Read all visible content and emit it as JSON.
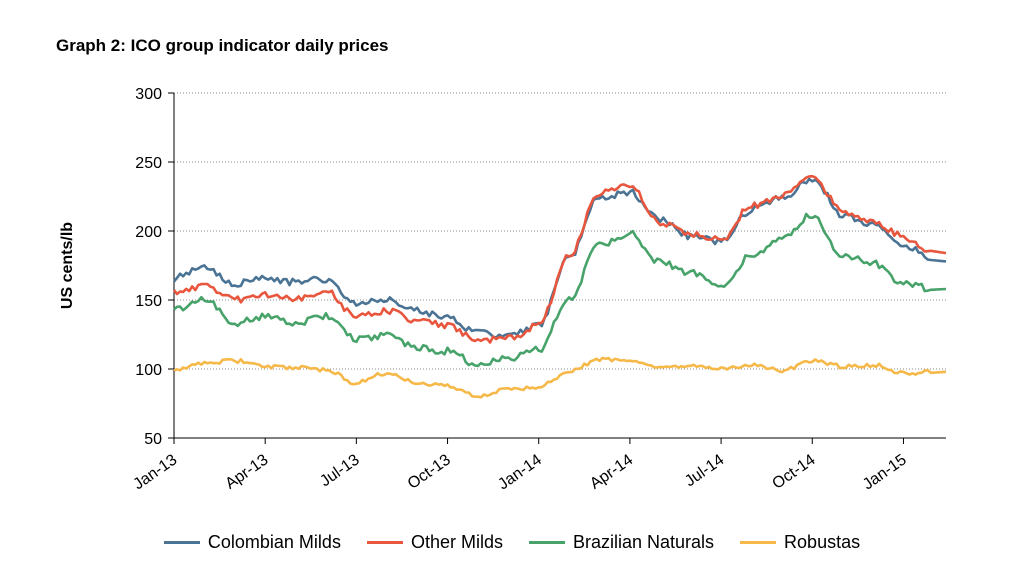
{
  "chart_data": {
    "type": "line",
    "title": "Graph 2: ICO group indicator daily prices",
    "xlabel": "",
    "ylabel": "US cents/lb",
    "ylim": [
      50,
      300
    ],
    "yticks": [
      50,
      100,
      150,
      200,
      250,
      300
    ],
    "xticks": [
      "Jan-13",
      "Apr-13",
      "Jul-13",
      "Oct-13",
      "Jan-14",
      "Apr-14",
      "Jul-14",
      "Oct-14",
      "Jan-15"
    ],
    "grid": "horizontal",
    "legend_position": "bottom",
    "x": [
      "2013-01",
      "2013-02",
      "2013-03",
      "2013-04",
      "2013-05",
      "2013-06",
      "2013-07",
      "2013-08",
      "2013-09",
      "2013-10",
      "2013-11",
      "2013-12",
      "2014-01",
      "2014-02",
      "2014-03",
      "2014-04",
      "2014-05",
      "2014-06",
      "2014-07",
      "2014-08",
      "2014-09",
      "2014-10",
      "2014-11",
      "2014-12",
      "2015-01",
      "2015-02"
    ],
    "series": [
      {
        "name": "Colombian Milds",
        "color": "#4a7394",
        "values": [
          166,
          173,
          162,
          165,
          163,
          165,
          147,
          150,
          142,
          137,
          126,
          124,
          132,
          180,
          225,
          228,
          208,
          196,
          192,
          215,
          224,
          238,
          212,
          205,
          190,
          178
        ]
      },
      {
        "name": "Other Milds",
        "color": "#e8563e",
        "values": [
          155,
          160,
          150,
          154,
          150,
          156,
          138,
          142,
          135,
          132,
          120,
          122,
          132,
          182,
          228,
          232,
          205,
          198,
          194,
          218,
          226,
          240,
          214,
          207,
          196,
          184
        ]
      },
      {
        "name": "Brazilian Naturals",
        "color": "#47a36a",
        "values": [
          143,
          150,
          133,
          138,
          133,
          138,
          122,
          124,
          115,
          113,
          103,
          108,
          114,
          150,
          190,
          198,
          177,
          170,
          160,
          182,
          195,
          212,
          182,
          177,
          162,
          158
        ]
      },
      {
        "name": "Robustas",
        "color": "#f5b849",
        "values": [
          99,
          104,
          106,
          102,
          101,
          99,
          90,
          97,
          90,
          88,
          80,
          85,
          87,
          98,
          107,
          106,
          102,
          102,
          101,
          103,
          99,
          106,
          102,
          103,
          97,
          98
        ]
      }
    ]
  }
}
